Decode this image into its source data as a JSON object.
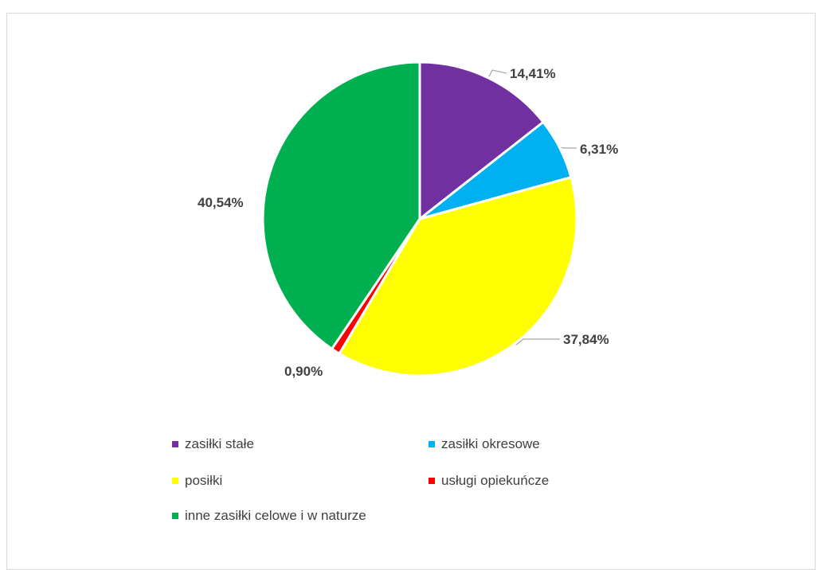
{
  "chart_data": {
    "type": "pie",
    "title": "",
    "categories": [
      "zasiłki stałe",
      "zasiłki okresowe",
      "posiłki",
      "usługi opiekuńcze",
      "inne zasiłki celowe i w naturze"
    ],
    "values": [
      14.41,
      6.31,
      37.84,
      0.9,
      40.54
    ],
    "labels": [
      "14,41%",
      "6,31%",
      "37,84%",
      "0,90%",
      "40,54%"
    ],
    "colors": [
      "#7030a0",
      "#00b0f0",
      "#ffff00",
      "#ff0000",
      "#00b050"
    ],
    "legend_position": "bottom"
  }
}
